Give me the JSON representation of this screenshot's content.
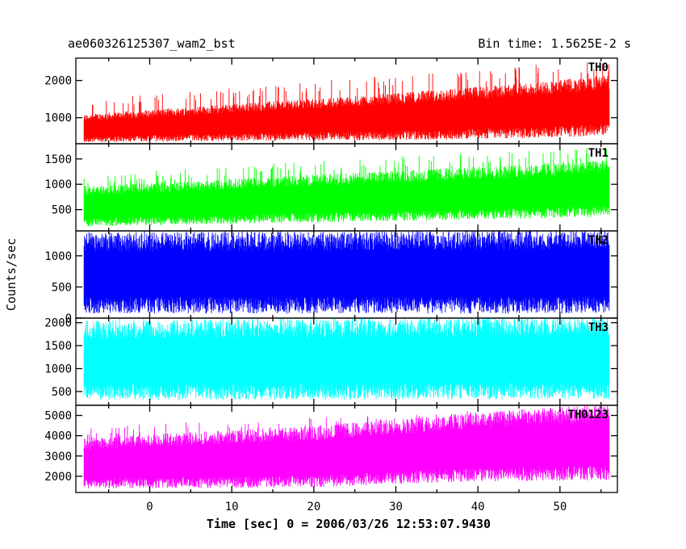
{
  "chart_data": {
    "type": "line",
    "title": "ae060326125307_wam2_bst",
    "subtitle": "Bin time: 1.5625E-2 s",
    "xlabel": "Time [sec] 0 = 2006/03/26 12:53:07.9430",
    "ylabel": "Counts/sec",
    "xlim": [
      -9,
      57
    ],
    "xticks": [
      0,
      10,
      20,
      30,
      40,
      50
    ],
    "panels": [
      {
        "name": "TH0",
        "color": "#ff0000",
        "ylim": [
          300,
          2600
        ],
        "yticks": [
          1000,
          2000
        ],
        "trend": [
          [
            -8,
            700
          ],
          [
            10,
            850
          ],
          [
            30,
            1000
          ],
          [
            45,
            1150
          ],
          [
            56,
            1300
          ]
        ],
        "spread": [
          [
            -8,
            300
          ],
          [
            56,
            650
          ]
        ],
        "spikes": [
          [
            -8,
            1500
          ],
          [
            56,
            2600
          ]
        ]
      },
      {
        "name": "TH1",
        "color": "#00ff00",
        "ylim": [
          80,
          1800
        ],
        "yticks": [
          500,
          1000,
          1500
        ],
        "trend": [
          [
            -8,
            550
          ],
          [
            20,
            700
          ],
          [
            40,
            800
          ],
          [
            56,
            900
          ]
        ],
        "spread": [
          [
            -8,
            320
          ],
          [
            56,
            450
          ]
        ],
        "spikes": [
          [
            -8,
            1200
          ],
          [
            56,
            1800
          ]
        ]
      },
      {
        "name": "TH2",
        "color": "#0000ff",
        "ylim": [
          0,
          1400
        ],
        "yticks": [
          0,
          500,
          1000
        ],
        "trend": [
          [
            -8,
            700
          ],
          [
            56,
            720
          ]
        ],
        "spread": [
          [
            -8,
            520
          ],
          [
            56,
            540
          ]
        ],
        "spikes": [
          [
            -8,
            1400
          ],
          [
            56,
            1400
          ]
        ]
      },
      {
        "name": "TH3",
        "color": "#00ffff",
        "ylim": [
          200,
          2100
        ],
        "yticks": [
          500,
          1000,
          1500,
          2000
        ],
        "trend": [
          [
            -8,
            1150
          ],
          [
            56,
            1200
          ]
        ],
        "spread": [
          [
            -8,
            700
          ],
          [
            56,
            720
          ]
        ],
        "spikes": [
          [
            -8,
            2100
          ],
          [
            56,
            2100
          ]
        ]
      },
      {
        "name": "TH0123",
        "color": "#ff00ff",
        "ylim": [
          1200,
          5500
        ],
        "yticks": [
          2000,
          3000,
          4000,
          5000
        ],
        "trend": [
          [
            -8,
            2600
          ],
          [
            20,
            2900
          ],
          [
            40,
            3400
          ],
          [
            56,
            3600
          ]
        ],
        "spread": [
          [
            -8,
            1000
          ],
          [
            56,
            1500
          ]
        ],
        "spikes": [
          [
            -8,
            4500
          ],
          [
            56,
            5500
          ]
        ]
      }
    ]
  }
}
